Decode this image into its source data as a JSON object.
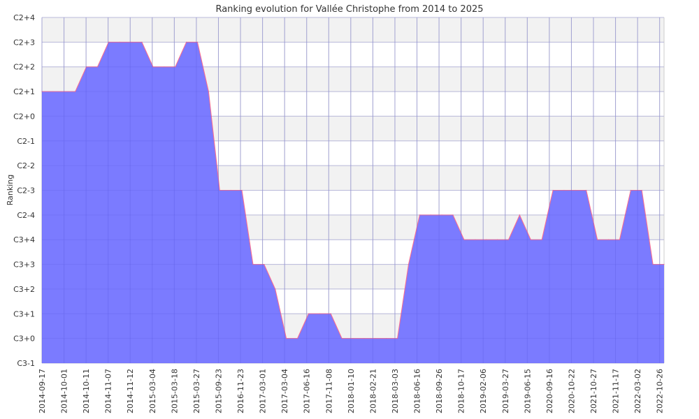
{
  "chart_data": {
    "type": "area",
    "title": "Ranking evolution for Vallée Christophe from 2014 to 2025",
    "ylabel": "Ranking",
    "xlabel": "",
    "y_categories": [
      "C3-1",
      "C3+0",
      "C3+1",
      "C3+2",
      "C3+3",
      "C3+4",
      "C2-4",
      "C2-3",
      "C2-2",
      "C2-1",
      "C2+0",
      "C2+1",
      "C2+2",
      "C2+3",
      "C2+4"
    ],
    "x_tick_labels": [
      "2014-09-17",
      "2014-10-01",
      "2014-10-11",
      "2014-11-07",
      "2014-11-12",
      "2015-03-04",
      "2015-03-18",
      "2015-03-27",
      "2015-09-23",
      "2016-11-23",
      "2017-03-01",
      "2017-03-04",
      "2017-06-16",
      "2017-11-08",
      "2018-01-10",
      "2018-02-21",
      "2018-03-03",
      "2018-06-16",
      "2018-09-26",
      "2018-10-17",
      "2019-02-06",
      "2019-03-27",
      "2019-06-15",
      "2020-09-16",
      "2020-10-22",
      "2021-10-27",
      "2021-11-17",
      "2022-03-02",
      "2022-10-26"
    ],
    "series": [
      {
        "values": [
          "C2+1",
          "C2+1",
          "C2+1",
          "C2+1",
          "C2+2",
          "C2+2",
          "C2+3",
          "C2+3",
          "C2+3",
          "C2+3",
          "C2+2",
          "C2+2",
          "C2+2",
          "C2+3",
          "C2+3",
          "C2+1",
          "C2-3",
          "C2-3",
          "C2-3",
          "C3+3",
          "C3+3",
          "C3+2",
          "C3+0",
          "C3+0",
          "C3+1",
          "C3+1",
          "C3+1",
          "C3+0",
          "C3+0",
          "C3+0",
          "C3+0",
          "C3+0",
          "C3+0",
          "C3+3",
          "C2-4",
          "C2-4",
          "C2-4",
          "C2-4",
          "C3+4",
          "C3+4",
          "C3+4",
          "C3+4",
          "C3+4",
          "C2-4",
          "C3+4",
          "C3+4",
          "C2-3",
          "C2-3",
          "C2-3",
          "C2-3",
          "C3+4",
          "C3+4",
          "C3+4",
          "C2-3",
          "C2-3",
          "C3+3",
          "C3+3"
        ]
      }
    ],
    "colors": {
      "fill": "#7b7bff",
      "line": "#ff6b8a",
      "band": "#f2f2f2",
      "grid": "#cccccc"
    },
    "grid": true,
    "legend": "none"
  }
}
